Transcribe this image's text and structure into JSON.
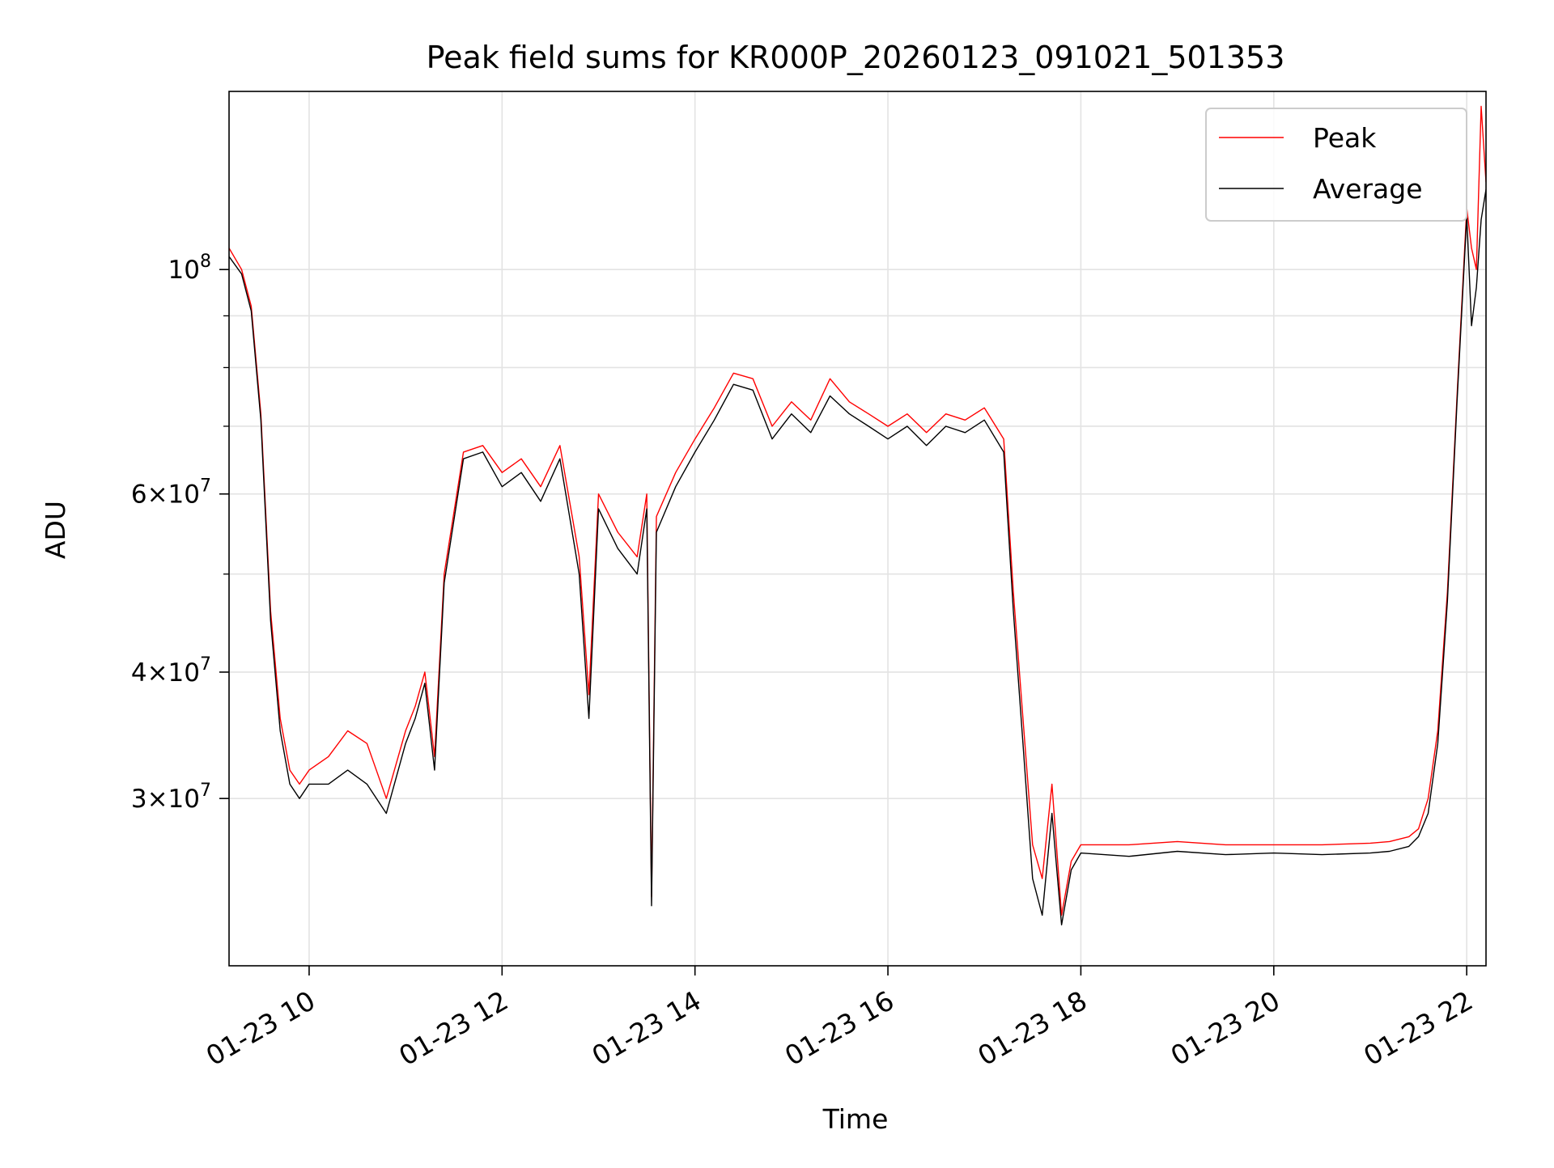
{
  "chart_data": {
    "type": "line",
    "title": "Peak field sums for KR000P_20260123_091021_501353",
    "xlabel": "Time",
    "ylabel": "ADU",
    "x_unit": "hours on 2026-01-23",
    "xlim": [
      9.17,
      22.2
    ],
    "ylim": [
      20500000,
      150000000
    ],
    "y_scale": "log",
    "grid": true,
    "legend_position": "top-right",
    "x_ticks": [
      {
        "value": 10,
        "label": "01-23 10"
      },
      {
        "value": 12,
        "label": "01-23 12"
      },
      {
        "value": 14,
        "label": "01-23 14"
      },
      {
        "value": 16,
        "label": "01-23 16"
      },
      {
        "value": 18,
        "label": "01-23 18"
      },
      {
        "value": 20,
        "label": "01-23 20"
      },
      {
        "value": 22,
        "label": "01-23 22"
      }
    ],
    "y_ticks": [
      {
        "value": 30000000,
        "base": "3×10",
        "exp": "7"
      },
      {
        "value": 40000000,
        "base": "4×10",
        "exp": "7"
      },
      {
        "value": 60000000,
        "base": "6×10",
        "exp": "7"
      },
      {
        "value": 100000000,
        "base": "10",
        "exp": "8"
      }
    ],
    "y_minor_ticks": [
      50000000,
      70000000,
      80000000,
      90000000
    ],
    "x": [
      9.17,
      9.3,
      9.4,
      9.5,
      9.6,
      9.7,
      9.8,
      9.9,
      10.0,
      10.2,
      10.4,
      10.6,
      10.8,
      11.0,
      11.1,
      11.2,
      11.3,
      11.4,
      11.6,
      11.8,
      12.0,
      12.2,
      12.4,
      12.6,
      12.8,
      12.9,
      13.0,
      13.2,
      13.4,
      13.5,
      13.55,
      13.6,
      13.8,
      14.0,
      14.2,
      14.4,
      14.6,
      14.8,
      15.0,
      15.2,
      15.4,
      15.6,
      15.8,
      16.0,
      16.2,
      16.4,
      16.6,
      16.8,
      17.0,
      17.2,
      17.3,
      17.4,
      17.5,
      17.6,
      17.7,
      17.8,
      17.9,
      18.0,
      18.5,
      19.0,
      19.5,
      20.0,
      20.5,
      21.0,
      21.2,
      21.4,
      21.5,
      21.6,
      21.7,
      21.8,
      21.9,
      22.0,
      22.05,
      22.1,
      22.15,
      22.2
    ],
    "series": [
      {
        "name": "Peak",
        "color": "#ff0000",
        "values": [
          105000000,
          100000000,
          92000000,
          72000000,
          46000000,
          36000000,
          32000000,
          31000000,
          32000000,
          33000000,
          35000000,
          34000000,
          30000000,
          35000000,
          37000000,
          40000000,
          33000000,
          50000000,
          66000000,
          67000000,
          63000000,
          65000000,
          61000000,
          67000000,
          52000000,
          38000000,
          60000000,
          55000000,
          52000000,
          60000000,
          24000000,
          57000000,
          63000000,
          68000000,
          73000000,
          79000000,
          78000000,
          70000000,
          74000000,
          71000000,
          78000000,
          74000000,
          72000000,
          70000000,
          72000000,
          69000000,
          72000000,
          71000000,
          73000000,
          68000000,
          48000000,
          36000000,
          27000000,
          25000000,
          31000000,
          23000000,
          26000000,
          27000000,
          27000000,
          27200000,
          27000000,
          27000000,
          27000000,
          27100000,
          27200000,
          27500000,
          28000000,
          30000000,
          35000000,
          48000000,
          75000000,
          115000000,
          105000000,
          100000000,
          145000000,
          122000000
        ]
      },
      {
        "name": "Average",
        "color": "#000000",
        "values": [
          103000000,
          99000000,
          91000000,
          71000000,
          45000000,
          35000000,
          31000000,
          30000000,
          31000000,
          31000000,
          32000000,
          31000000,
          29000000,
          34000000,
          36000000,
          39000000,
          32000000,
          49000000,
          65000000,
          66000000,
          61000000,
          63000000,
          59000000,
          65000000,
          50000000,
          36000000,
          58000000,
          53000000,
          50000000,
          58000000,
          23500000,
          55000000,
          61000000,
          66000000,
          71000000,
          77000000,
          76000000,
          68000000,
          72000000,
          69000000,
          75000000,
          72000000,
          70000000,
          68000000,
          70000000,
          67000000,
          70000000,
          69000000,
          71000000,
          66000000,
          46000000,
          34000000,
          25000000,
          23000000,
          29000000,
          22500000,
          25500000,
          26500000,
          26300000,
          26600000,
          26400000,
          26500000,
          26400000,
          26500000,
          26600000,
          26900000,
          27500000,
          29000000,
          34000000,
          47000000,
          74000000,
          113000000,
          88000000,
          96000000,
          112000000,
          120000000
        ]
      }
    ]
  }
}
